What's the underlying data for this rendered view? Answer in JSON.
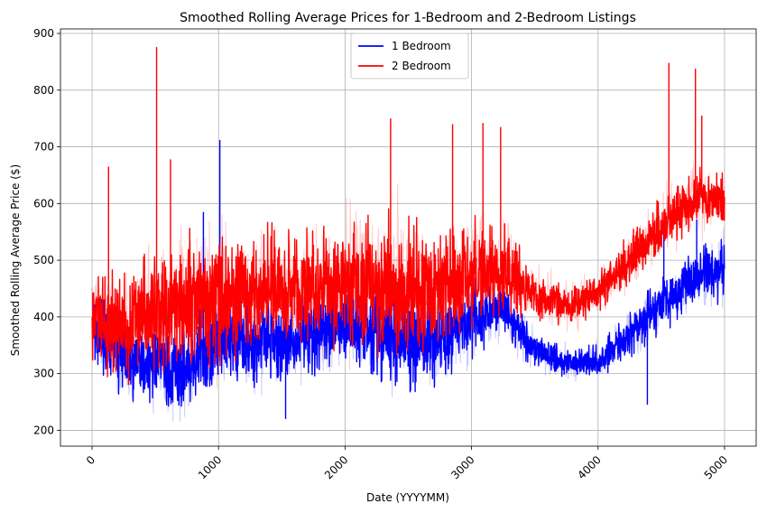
{
  "chart_data": {
    "type": "line",
    "title": "Smoothed Rolling Average Prices for 1-Bedroom and 2-Bedroom Listings",
    "xlabel": "Date (YYYYMM)",
    "ylabel": "Smoothed Rolling Average Price ($)",
    "xlim": [
      -250,
      5250
    ],
    "ylim": [
      172,
      908
    ],
    "xticks": [
      0,
      1000,
      2000,
      3000,
      4000,
      5000
    ],
    "yticks": [
      200,
      300,
      400,
      500,
      600,
      700,
      800,
      900
    ],
    "xtick_rotation": 45,
    "grid": true,
    "legend_position": "upper-center",
    "series": [
      {
        "name": "1 Bedroom",
        "color": "#0000ff",
        "raw_alpha": 0.2,
        "x": [
          0,
          250,
          500,
          750,
          1000,
          1250,
          1500,
          1750,
          2000,
          2250,
          2500,
          2750,
          3000,
          3250,
          3500,
          3750,
          4000,
          4250,
          4500,
          4750,
          5000
        ],
        "smoothed_center": [
          380,
          330,
          320,
          310,
          360,
          360,
          360,
          370,
          380,
          380,
          360,
          360,
          400,
          420,
          340,
          320,
          320,
          370,
          420,
          470,
          480
        ],
        "smoothed_spread": [
          70,
          80,
          90,
          90,
          110,
          90,
          80,
          80,
          80,
          110,
          110,
          90,
          80,
          60,
          40,
          30,
          35,
          50,
          60,
          60,
          70
        ],
        "raw_spread": [
          90,
          100,
          110,
          120,
          130,
          110,
          100,
          100,
          100,
          130,
          130,
          110,
          100,
          80,
          50,
          40,
          45,
          60,
          70,
          70,
          80
        ],
        "spikes": [
          [
            1010,
            712
          ],
          [
            880,
            585
          ],
          [
            4390,
            245
          ],
          [
            1530,
            220
          ],
          [
            4520,
            555
          ],
          [
            4780,
            572
          ]
        ]
      },
      {
        "name": "2 Bedroom",
        "color": "#ff0000",
        "raw_alpha": 0.2,
        "x": [
          0,
          250,
          500,
          750,
          1000,
          1250,
          1500,
          1750,
          2000,
          2250,
          2500,
          2750,
          3000,
          3250,
          3500,
          3750,
          4000,
          4250,
          4500,
          4750,
          5000
        ],
        "smoothed_center": [
          400,
          380,
          420,
          420,
          430,
          450,
          450,
          450,
          460,
          460,
          460,
          450,
          480,
          480,
          440,
          420,
          440,
          500,
          560,
          610,
          610
        ],
        "smoothed_spread": [
          90,
          110,
          140,
          140,
          140,
          130,
          120,
          120,
          130,
          150,
          150,
          120,
          110,
          100,
          50,
          40,
          45,
          55,
          60,
          60,
          70
        ],
        "raw_spread": [
          110,
          130,
          170,
          170,
          170,
          150,
          140,
          150,
          160,
          180,
          180,
          150,
          140,
          120,
          70,
          60,
          60,
          70,
          80,
          80,
          80
        ],
        "spikes": [
          [
            2360,
            750
          ],
          [
            4820,
            755
          ],
          [
            130,
            665
          ],
          [
            620,
            678
          ],
          [
            3090,
            742
          ],
          [
            510,
            876
          ],
          [
            4560,
            848
          ],
          [
            3230,
            735
          ],
          [
            2850,
            740
          ],
          [
            4770,
            838
          ]
        ]
      }
    ]
  }
}
